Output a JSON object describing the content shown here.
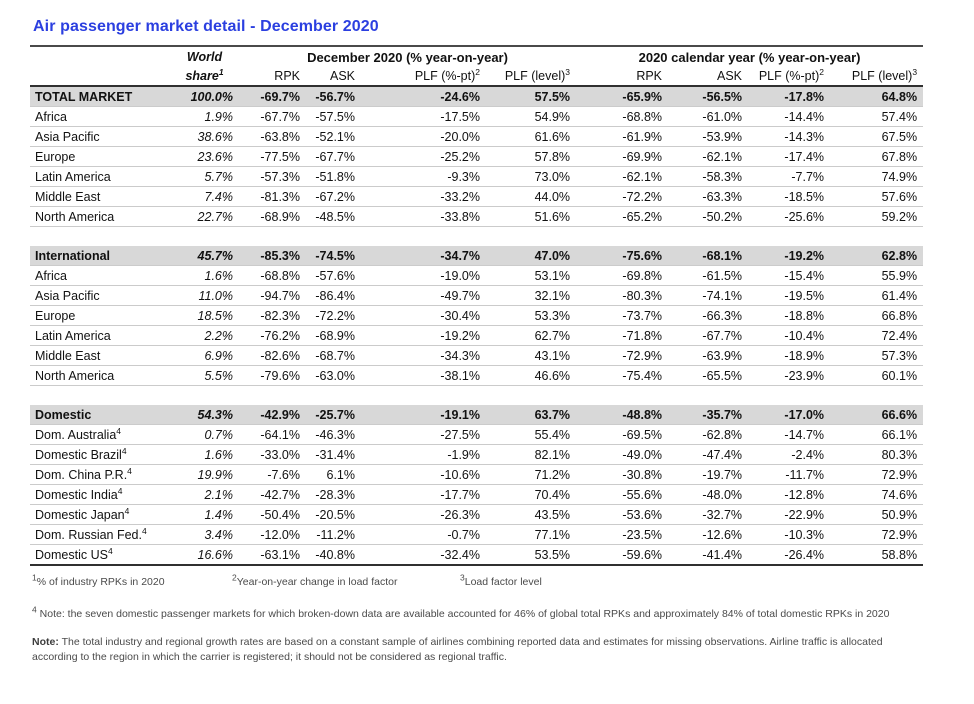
{
  "title": "Air passenger market detail - December 2020",
  "colors": {
    "title_blue": "#2b3fe0",
    "band_gray": "#d8d8d8",
    "border_dark": "#303030",
    "border_light": "#cbcbcb"
  },
  "header": {
    "world_line1": "World",
    "world_line2": "share",
    "world_sup": "1",
    "dec_group": "December 2020 (% year-on-year)",
    "cy_group": "2020 calendar year (% year-on-year)",
    "cols": [
      {
        "text": "RPK",
        "sup": ""
      },
      {
        "text": "ASK",
        "sup": ""
      },
      {
        "text": "PLF (%-pt)",
        "sup": "2"
      },
      {
        "text": "PLF (level)",
        "sup": "3"
      }
    ]
  },
  "table": {
    "sections": [
      {
        "header_row": {
          "label": "TOTAL MARKET",
          "sup": "",
          "share": "100.0%",
          "values": [
            "-69.7%",
            "-56.7%",
            "-24.6%",
            "57.5%",
            "-65.9%",
            "-56.5%",
            "-17.8%",
            "64.8%"
          ]
        },
        "rows": [
          {
            "label": "Africa",
            "sup": "",
            "share": "1.9%",
            "values": [
              "-67.7%",
              "-57.5%",
              "-17.5%",
              "54.9%",
              "-68.8%",
              "-61.0%",
              "-14.4%",
              "57.4%"
            ]
          },
          {
            "label": "Asia Pacific",
            "sup": "",
            "share": "38.6%",
            "values": [
              "-63.8%",
              "-52.1%",
              "-20.0%",
              "61.6%",
              "-61.9%",
              "-53.9%",
              "-14.3%",
              "67.5%"
            ]
          },
          {
            "label": "Europe",
            "sup": "",
            "share": "23.6%",
            "values": [
              "-77.5%",
              "-67.7%",
              "-25.2%",
              "57.8%",
              "-69.9%",
              "-62.1%",
              "-17.4%",
              "67.8%"
            ]
          },
          {
            "label": "Latin America",
            "sup": "",
            "share": "5.7%",
            "values": [
              "-57.3%",
              "-51.8%",
              "-9.3%",
              "73.0%",
              "-62.1%",
              "-58.3%",
              "-7.7%",
              "74.9%"
            ]
          },
          {
            "label": "Middle East",
            "sup": "",
            "share": "7.4%",
            "values": [
              "-81.3%",
              "-67.2%",
              "-33.2%",
              "44.0%",
              "-72.2%",
              "-63.3%",
              "-18.5%",
              "57.6%"
            ]
          },
          {
            "label": "North America",
            "sup": "",
            "share": "22.7%",
            "values": [
              "-68.9%",
              "-48.5%",
              "-33.8%",
              "51.6%",
              "-65.2%",
              "-50.2%",
              "-25.6%",
              "59.2%"
            ]
          }
        ]
      },
      {
        "header_row": {
          "label": "International",
          "sup": "",
          "share": "45.7%",
          "values": [
            "-85.3%",
            "-74.5%",
            "-34.7%",
            "47.0%",
            "-75.6%",
            "-68.1%",
            "-19.2%",
            "62.8%"
          ]
        },
        "rows": [
          {
            "label": "Africa",
            "sup": "",
            "share": "1.6%",
            "values": [
              "-68.8%",
              "-57.6%",
              "-19.0%",
              "53.1%",
              "-69.8%",
              "-61.5%",
              "-15.4%",
              "55.9%"
            ]
          },
          {
            "label": "Asia Pacific",
            "sup": "",
            "share": "11.0%",
            "values": [
              "-94.7%",
              "-86.4%",
              "-49.7%",
              "32.1%",
              "-80.3%",
              "-74.1%",
              "-19.5%",
              "61.4%"
            ]
          },
          {
            "label": "Europe",
            "sup": "",
            "share": "18.5%",
            "values": [
              "-82.3%",
              "-72.2%",
              "-30.4%",
              "53.3%",
              "-73.7%",
              "-66.3%",
              "-18.8%",
              "66.8%"
            ]
          },
          {
            "label": "Latin America",
            "sup": "",
            "share": "2.2%",
            "values": [
              "-76.2%",
              "-68.9%",
              "-19.2%",
              "62.7%",
              "-71.8%",
              "-67.7%",
              "-10.4%",
              "72.4%"
            ]
          },
          {
            "label": "Middle East",
            "sup": "",
            "share": "6.9%",
            "values": [
              "-82.6%",
              "-68.7%",
              "-34.3%",
              "43.1%",
              "-72.9%",
              "-63.9%",
              "-18.9%",
              "57.3%"
            ]
          },
          {
            "label": "North America",
            "sup": "",
            "share": "5.5%",
            "values": [
              "-79.6%",
              "-63.0%",
              "-38.1%",
              "46.6%",
              "-75.4%",
              "-65.5%",
              "-23.9%",
              "60.1%"
            ]
          }
        ]
      },
      {
        "header_row": {
          "label": "Domestic",
          "sup": "",
          "share": "54.3%",
          "values": [
            "-42.9%",
            "-25.7%",
            "-19.1%",
            "63.7%",
            "-48.8%",
            "-35.7%",
            "-17.0%",
            "66.6%"
          ]
        },
        "rows": [
          {
            "label": "Dom. Australia",
            "sup": "4",
            "share": "0.7%",
            "values": [
              "-64.1%",
              "-46.3%",
              "-27.5%",
              "55.4%",
              "-69.5%",
              "-62.8%",
              "-14.7%",
              "66.1%"
            ]
          },
          {
            "label": "Domestic Brazil",
            "sup": "4",
            "share": "1.6%",
            "values": [
              "-33.0%",
              "-31.4%",
              "-1.9%",
              "82.1%",
              "-49.0%",
              "-47.4%",
              "-2.4%",
              "80.3%"
            ]
          },
          {
            "label": "Dom. China P.R.",
            "sup": "4",
            "share": "19.9%",
            "values": [
              "-7.6%",
              "6.1%",
              "-10.6%",
              "71.2%",
              "-30.8%",
              "-19.7%",
              "-11.7%",
              "72.9%"
            ]
          },
          {
            "label": "Domestic India",
            "sup": "4",
            "share": "2.1%",
            "values": [
              "-42.7%",
              "-28.3%",
              "-17.7%",
              "70.4%",
              "-55.6%",
              "-48.0%",
              "-12.8%",
              "74.6%"
            ]
          },
          {
            "label": "Domestic Japan",
            "sup": "4",
            "share": "1.4%",
            "values": [
              "-50.4%",
              "-20.5%",
              "-26.3%",
              "43.5%",
              "-53.6%",
              "-32.7%",
              "-22.9%",
              "50.9%"
            ]
          },
          {
            "label": "Dom. Russian Fed.",
            "sup": "4",
            "share": "3.4%",
            "values": [
              "-12.0%",
              "-11.2%",
              "-0.7%",
              "77.1%",
              "-23.5%",
              "-12.6%",
              "-10.3%",
              "72.9%"
            ]
          },
          {
            "label": "Domestic US",
            "sup": "4",
            "share": "16.6%",
            "values": [
              "-63.1%",
              "-40.8%",
              "-32.4%",
              "53.5%",
              "-59.6%",
              "-41.4%",
              "-26.4%",
              "58.8%"
            ]
          }
        ]
      }
    ]
  },
  "footnotes": {
    "f1": {
      "sup": "1",
      "text": "% of industry RPKs in 2020"
    },
    "f2": {
      "sup": "2",
      "text": "Year-on-year change in load factor"
    },
    "f3": {
      "sup": "3",
      "text": "Load factor level"
    },
    "f4": {
      "sup": "4",
      "text": " Note: the seven domestic passenger markets for which broken-down data are available accounted for 46% of global total RPKs and approximately 84% of total domestic RPKs in 2020"
    },
    "note_label": "Note:",
    "note_text": " The total industry and regional growth rates are based on a constant sample of airlines combining reported data and estimates for missing observations. Airline traffic is allocated according to the region in which the carrier is registered; it should not be considered as regional traffic."
  }
}
